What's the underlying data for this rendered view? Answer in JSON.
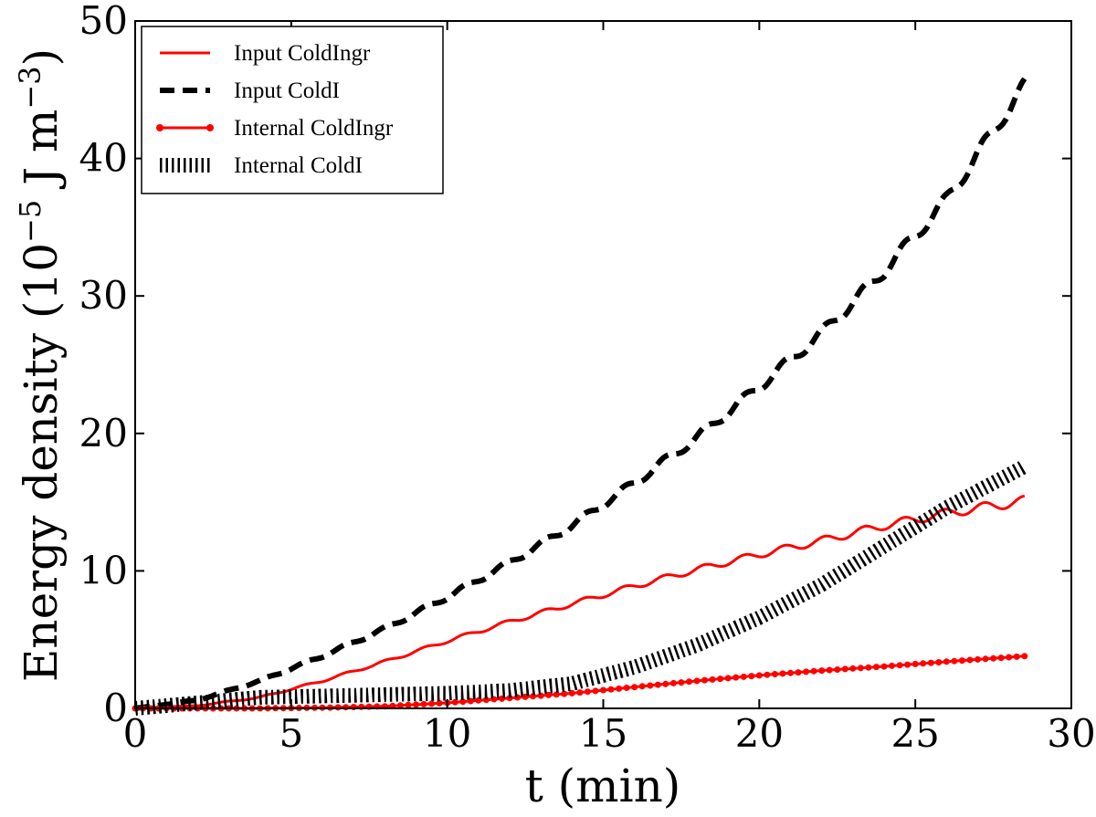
{
  "chart_data": {
    "type": "line",
    "title": "",
    "xlabel": "t (min)",
    "ylabel_main": "Energy density (10",
    "ylabel_exp1": "−5",
    "ylabel_mid": " J m",
    "ylabel_exp2": "−3",
    "ylabel_end": ")",
    "xlim": [
      0,
      30
    ],
    "ylim": [
      0,
      50
    ],
    "xticks": [
      "0",
      "5",
      "10",
      "15",
      "20",
      "25",
      "30"
    ],
    "yticks": [
      "0",
      "10",
      "20",
      "30",
      "40",
      "50"
    ],
    "legend_position": "top-left",
    "x": [
      0,
      2,
      4,
      6,
      8,
      10,
      12,
      14,
      16,
      18,
      20,
      22,
      24,
      26,
      28.5
    ],
    "series": [
      {
        "name": "Input ColdIngr",
        "style": "solid",
        "color": "#ff0000",
        "values": [
          0,
          0.2,
          0.8,
          2.0,
          3.4,
          4.9,
          6.3,
          7.6,
          8.9,
          10.1,
          11.2,
          12.2,
          13.3,
          14.2,
          15.1
        ]
      },
      {
        "name": "Input ColdI",
        "style": "dashed",
        "color": "#000000",
        "values": [
          0,
          0.6,
          2.0,
          3.8,
          5.8,
          8.1,
          10.6,
          13.3,
          16.4,
          19.7,
          23.4,
          27.3,
          31.8,
          37.0,
          45.3
        ]
      },
      {
        "name": "Internal ColdIngr",
        "style": "dotted-solid",
        "color": "#ff0000",
        "values": [
          0,
          0,
          0,
          0.05,
          0.15,
          0.4,
          0.75,
          1.1,
          1.55,
          2.0,
          2.4,
          2.75,
          3.05,
          3.4,
          3.8
        ]
      },
      {
        "name": "Internal ColdI",
        "style": "hatched",
        "color": "#000000",
        "values": [
          0,
          0.4,
          0.8,
          0.9,
          1.0,
          1.1,
          1.3,
          1.8,
          3.0,
          4.6,
          6.6,
          9.0,
          11.8,
          14.6,
          17.6
        ]
      }
    ]
  }
}
